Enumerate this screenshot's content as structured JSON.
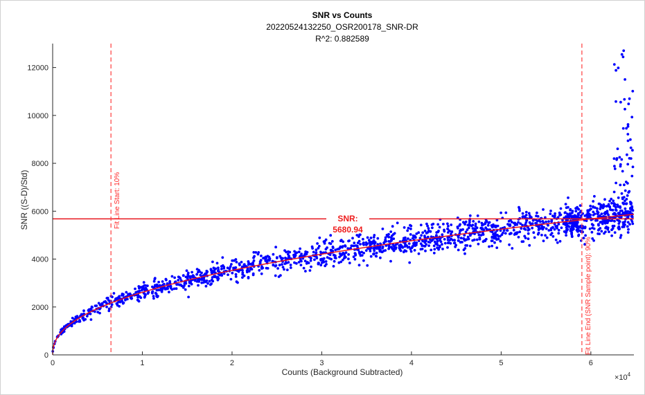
{
  "chart_data": {
    "type": "scatter",
    "title": "SNR vs Counts",
    "subtitle": "20220524132250_OSR200178_SNR-DR",
    "r2_text": "R^2: 0.882589",
    "xlabel": "Counts (Background Subtracted)",
    "ylabel": "SNR ((S-D)/Std)",
    "x_exponent_label": "×10",
    "x_exponent_power": "4",
    "xlim": [
      0,
      64800
    ],
    "ylim": [
      0,
      13000
    ],
    "x_ticks": [
      0,
      10000,
      20000,
      30000,
      40000,
      50000,
      60000
    ],
    "x_tick_labels": [
      "0",
      "1",
      "2",
      "3",
      "4",
      "5",
      "6"
    ],
    "y_ticks": [
      0,
      2000,
      4000,
      6000,
      8000,
      10000,
      12000
    ],
    "y_tick_labels": [
      "0",
      "2000",
      "4000",
      "6000",
      "8000",
      "10000",
      "12000"
    ],
    "grid": false,
    "colors": {
      "scatter": "#0000ff",
      "fit": "#e8141c",
      "annotation": "#ff3b3b"
    },
    "fit_line": {
      "model": "power",
      "a": 48.2,
      "b": 0.4335,
      "x_start": 0,
      "x_end": 64800
    },
    "snr_line": {
      "value": 5680.94,
      "label": "SNR:",
      "value_text": "5680.94"
    },
    "vlines": [
      {
        "x": 6500,
        "label": "Fit Line Start: 10%"
      },
      {
        "x": 59000,
        "label": "Fit Line End (SNR Sample point): 90%"
      }
    ],
    "scatter_summary": {
      "n_points": 1800,
      "spread_fraction": 0.09,
      "note_high_end": "cluster near x 60000–65000 with outliers up to 12900"
    }
  }
}
